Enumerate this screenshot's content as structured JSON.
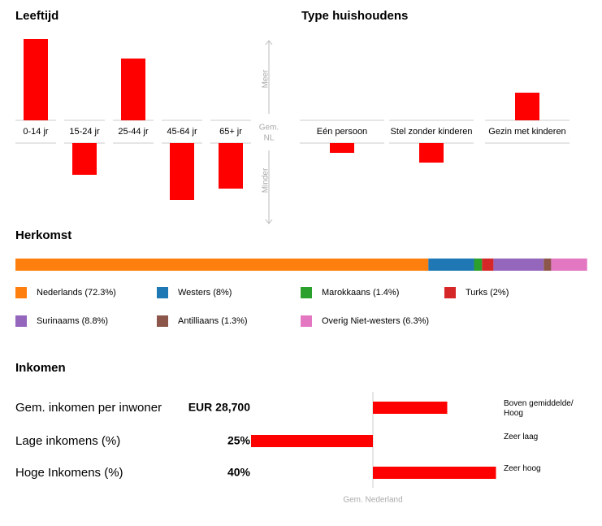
{
  "chart_data": [
    {
      "type": "deviation-bar",
      "title": "Leeftijd",
      "categories": [
        "0-14 jr",
        "15-24 jr",
        "25-44 jr",
        "45-64 jr",
        "65+ jr"
      ],
      "values": [
        100,
        -39,
        76,
        -70,
        -56
      ],
      "ylim": [
        -100,
        100
      ],
      "color": "#ff0000",
      "axis_labels": {
        "up": "Meer",
        "middle": [
          "Gem.",
          "NL"
        ],
        "down": "Minder"
      }
    },
    {
      "type": "deviation-bar",
      "title": "Type huishoudens",
      "categories": [
        "Eén persoon",
        "Stel zonder kinderen",
        "Gezin met kinderen"
      ],
      "values": [
        -12,
        -24,
        34
      ],
      "ylim": [
        -100,
        100
      ],
      "color": "#ff0000"
    },
    {
      "type": "stacked-hbar",
      "title": "Herkomst",
      "xlim": [
        0,
        100
      ],
      "series": [
        {
          "name": "Nederlands (72.3%)",
          "color": "#ff7f0e",
          "values": [
            72.3
          ]
        },
        {
          "name": "Westers (8%)",
          "color": "#1f77b4",
          "values": [
            8
          ]
        },
        {
          "name": "Marokkaans (1.4%)",
          "color": "#2ca02c",
          "values": [
            1.4
          ]
        },
        {
          "name": "Turks (2%)",
          "color": "#d62728",
          "values": [
            2
          ]
        },
        {
          "name": "Surinaams (8.8%)",
          "color": "#9467bd",
          "values": [
            8.8
          ]
        },
        {
          "name": "Antilliaans (1.3%)",
          "color": "#8c564b",
          "values": [
            1.3
          ]
        },
        {
          "name": "Overig Niet-westers (6.3%)",
          "color": "#e377c2",
          "values": [
            6.3
          ]
        }
      ]
    },
    {
      "type": "income-rows",
      "title": "Inkomen",
      "categories": [
        "Gem. inkomen per inwoner",
        "Lage inkomens (%)",
        "Hoge Inkomens (%)"
      ],
      "values": [
        28700,
        25,
        40
      ],
      "value_labels": [
        "EUR 28,700",
        "25%",
        "40%"
      ],
      "deviations": [
        61,
        -100,
        101
      ],
      "xlim": [
        -100,
        100
      ],
      "color": "#ff0000",
      "ratings": [
        "Boven gemiddelde/ Hoog",
        "Zeer laag",
        "Zeer hoog"
      ],
      "axis_label": "Gem. Nederland"
    }
  ]
}
